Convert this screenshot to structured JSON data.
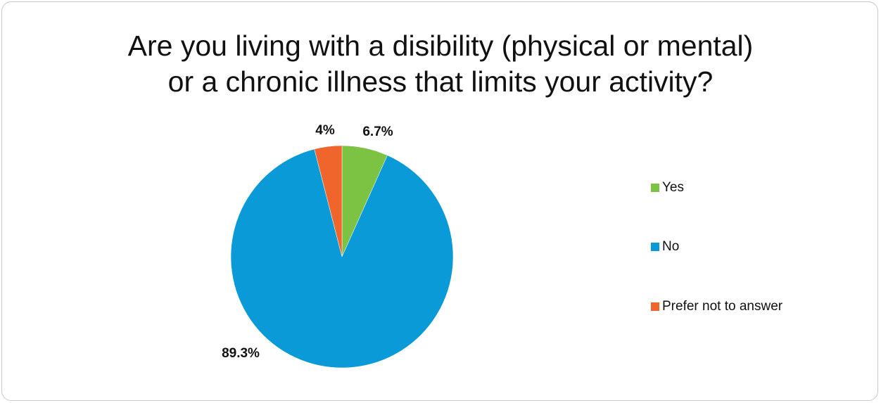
{
  "chart_data": {
    "type": "pie",
    "title_lines": [
      "Are you living with a disibility (physical or mental)",
      "or a chronic illness that limits your activity?"
    ],
    "slices": [
      {
        "label": "Yes",
        "value": 6.7,
        "data_label": "6.7%",
        "color": "#7cc243"
      },
      {
        "label": "No",
        "value": 89.3,
        "data_label": "89.3%",
        "color": "#0a9ad8"
      },
      {
        "label": "Prefer not to answer",
        "value": 4,
        "data_label": "4%",
        "color": "#f0652b"
      }
    ],
    "legend_position": "right",
    "start_angle_deg": 0,
    "direction": "clockwise"
  }
}
